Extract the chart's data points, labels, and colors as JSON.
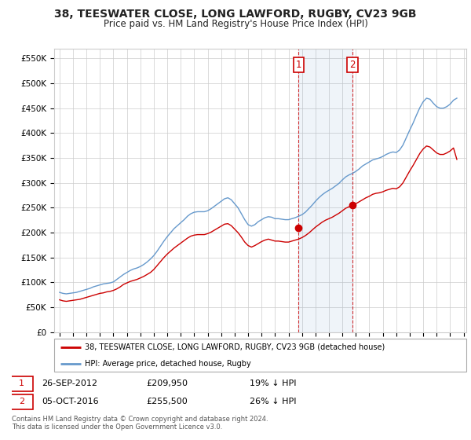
{
  "title": "38, TEESWATER CLOSE, LONG LAWFORD, RUGBY, CV23 9GB",
  "subtitle": "Price paid vs. HM Land Registry's House Price Index (HPI)",
  "ylabel_ticks": [
    "£0",
    "£50K",
    "£100K",
    "£150K",
    "£200K",
    "£250K",
    "£300K",
    "£350K",
    "£400K",
    "£450K",
    "£500K",
    "£550K"
  ],
  "ytick_values": [
    0,
    50000,
    100000,
    150000,
    200000,
    250000,
    300000,
    350000,
    400000,
    450000,
    500000,
    550000
  ],
  "ylim": [
    0,
    570000
  ],
  "hpi_color": "#6699cc",
  "price_color": "#cc0000",
  "marker_color": "#cc0000",
  "transaction1_date": "26-SEP-2012",
  "transaction1_price": 209950,
  "transaction1_label": "1",
  "transaction1_x": 2012.74,
  "transaction2_date": "05-OCT-2016",
  "transaction2_price": 255500,
  "transaction2_label": "2",
  "transaction2_x": 2016.76,
  "legend_property": "38, TEESWATER CLOSE, LONG LAWFORD, RUGBY, CV23 9GB (detached house)",
  "legend_hpi": "HPI: Average price, detached house, Rugby",
  "footer1": "Contains HM Land Registry data © Crown copyright and database right 2024.",
  "footer2": "This data is licensed under the Open Government Licence v3.0.",
  "background_color": "#ffffff",
  "grid_color": "#cccccc",
  "xtick_years": [
    1995,
    1996,
    1997,
    1998,
    1999,
    2000,
    2001,
    2002,
    2003,
    2004,
    2005,
    2006,
    2007,
    2008,
    2009,
    2010,
    2011,
    2012,
    2013,
    2014,
    2015,
    2016,
    2017,
    2018,
    2019,
    2020,
    2021,
    2022,
    2023,
    2024,
    2025
  ],
  "hpi_data": {
    "years": [
      1995.0,
      1995.25,
      1995.5,
      1995.75,
      1996.0,
      1996.25,
      1996.5,
      1996.75,
      1997.0,
      1997.25,
      1997.5,
      1997.75,
      1998.0,
      1998.25,
      1998.5,
      1998.75,
      1999.0,
      1999.25,
      1999.5,
      1999.75,
      2000.0,
      2000.25,
      2000.5,
      2000.75,
      2001.0,
      2001.25,
      2001.5,
      2001.75,
      2002.0,
      2002.25,
      2002.5,
      2002.75,
      2003.0,
      2003.25,
      2003.5,
      2003.75,
      2004.0,
      2004.25,
      2004.5,
      2004.75,
      2005.0,
      2005.25,
      2005.5,
      2005.75,
      2006.0,
      2006.25,
      2006.5,
      2006.75,
      2007.0,
      2007.25,
      2007.5,
      2007.75,
      2008.0,
      2008.25,
      2008.5,
      2008.75,
      2009.0,
      2009.25,
      2009.5,
      2009.75,
      2010.0,
      2010.25,
      2010.5,
      2010.75,
      2011.0,
      2011.25,
      2011.5,
      2011.75,
      2012.0,
      2012.25,
      2012.5,
      2012.75,
      2013.0,
      2013.25,
      2013.5,
      2013.75,
      2014.0,
      2014.25,
      2014.5,
      2014.75,
      2015.0,
      2015.25,
      2015.5,
      2015.75,
      2016.0,
      2016.25,
      2016.5,
      2016.75,
      2017.0,
      2017.25,
      2017.5,
      2017.75,
      2018.0,
      2018.25,
      2018.5,
      2018.75,
      2019.0,
      2019.25,
      2019.5,
      2019.75,
      2020.0,
      2020.25,
      2020.5,
      2020.75,
      2021.0,
      2021.25,
      2021.5,
      2021.75,
      2022.0,
      2022.25,
      2022.5,
      2022.75,
      2023.0,
      2023.25,
      2023.5,
      2023.75,
      2024.0,
      2024.25,
      2024.5
    ],
    "values": [
      80000,
      78000,
      77000,
      78000,
      79000,
      80000,
      82000,
      84000,
      86000,
      88000,
      91000,
      93000,
      95000,
      97000,
      98000,
      99000,
      101000,
      106000,
      111000,
      116000,
      120000,
      124000,
      127000,
      129000,
      132000,
      136000,
      141000,
      147000,
      154000,
      163000,
      173000,
      183000,
      192000,
      200000,
      208000,
      214000,
      220000,
      226000,
      233000,
      238000,
      241000,
      242000,
      242000,
      242000,
      244000,
      248000,
      253000,
      258000,
      263000,
      268000,
      270000,
      266000,
      258000,
      250000,
      238000,
      226000,
      216000,
      213000,
      216000,
      222000,
      226000,
      230000,
      232000,
      231000,
      228000,
      228000,
      227000,
      226000,
      226000,
      228000,
      230000,
      233000,
      236000,
      241000,
      248000,
      255000,
      263000,
      270000,
      276000,
      281000,
      285000,
      289000,
      294000,
      299000,
      306000,
      312000,
      316000,
      319000,
      323000,
      328000,
      334000,
      338000,
      342000,
      346000,
      348000,
      350000,
      353000,
      357000,
      360000,
      362000,
      361000,
      366000,
      376000,
      391000,
      406000,
      420000,
      436000,
      451000,
      463000,
      470000,
      468000,
      460000,
      453000,
      450000,
      450000,
      453000,
      458000,
      466000,
      470000
    ]
  },
  "price_data": {
    "years": [
      1995.0,
      1995.25,
      1995.5,
      1995.75,
      1996.0,
      1996.25,
      1996.5,
      1996.75,
      1997.0,
      1997.25,
      1997.5,
      1997.75,
      1998.0,
      1998.25,
      1998.5,
      1998.75,
      1999.0,
      1999.25,
      1999.5,
      1999.75,
      2000.0,
      2000.25,
      2000.5,
      2000.75,
      2001.0,
      2001.25,
      2001.5,
      2001.75,
      2002.0,
      2002.25,
      2002.5,
      2002.75,
      2003.0,
      2003.25,
      2003.5,
      2003.75,
      2004.0,
      2004.25,
      2004.5,
      2004.75,
      2005.0,
      2005.25,
      2005.5,
      2005.75,
      2006.0,
      2006.25,
      2006.5,
      2006.75,
      2007.0,
      2007.25,
      2007.5,
      2007.75,
      2008.0,
      2008.25,
      2008.5,
      2008.75,
      2009.0,
      2009.25,
      2009.5,
      2009.75,
      2010.0,
      2010.25,
      2010.5,
      2010.75,
      2011.0,
      2011.25,
      2011.5,
      2011.75,
      2012.0,
      2012.25,
      2012.5,
      2012.75,
      2013.0,
      2013.25,
      2013.5,
      2013.75,
      2014.0,
      2014.25,
      2014.5,
      2014.75,
      2015.0,
      2015.25,
      2015.5,
      2015.75,
      2016.0,
      2016.25,
      2016.5,
      2016.75,
      2017.0,
      2017.25,
      2017.5,
      2017.75,
      2018.0,
      2018.25,
      2018.5,
      2018.75,
      2019.0,
      2019.25,
      2019.5,
      2019.75,
      2020.0,
      2020.25,
      2020.5,
      2020.75,
      2021.0,
      2021.25,
      2021.5,
      2021.75,
      2022.0,
      2022.25,
      2022.5,
      2022.75,
      2023.0,
      2023.25,
      2023.5,
      2023.75,
      2024.0,
      2024.25,
      2024.5
    ],
    "values": [
      65000,
      63000,
      62000,
      63000,
      64000,
      65000,
      66000,
      68000,
      70000,
      72000,
      74000,
      76000,
      78000,
      79000,
      81000,
      82000,
      84000,
      87000,
      91000,
      96000,
      99000,
      102000,
      104000,
      106000,
      109000,
      112000,
      116000,
      120000,
      126000,
      134000,
      142000,
      150000,
      157000,
      163000,
      169000,
      174000,
      179000,
      184000,
      189000,
      193000,
      195000,
      196000,
      196000,
      196000,
      198000,
      201000,
      205000,
      209000,
      213000,
      217000,
      218000,
      214000,
      207000,
      200000,
      191000,
      181000,
      174000,
      171000,
      174000,
      178000,
      182000,
      185000,
      187000,
      185000,
      183000,
      183000,
      182000,
      181000,
      181000,
      183000,
      185000,
      187000,
      190000,
      194000,
      199000,
      205000,
      211000,
      216000,
      221000,
      225000,
      228000,
      231000,
      235000,
      239000,
      244000,
      249000,
      252000,
      255000,
      258000,
      262000,
      266000,
      270000,
      273000,
      277000,
      279000,
      280000,
      282000,
      285000,
      287000,
      289000,
      288000,
      292000,
      300000,
      312000,
      324000,
      335000,
      347000,
      359000,
      368000,
      374000,
      372000,
      366000,
      360000,
      357000,
      357000,
      360000,
      364000,
      370000,
      347000
    ]
  }
}
